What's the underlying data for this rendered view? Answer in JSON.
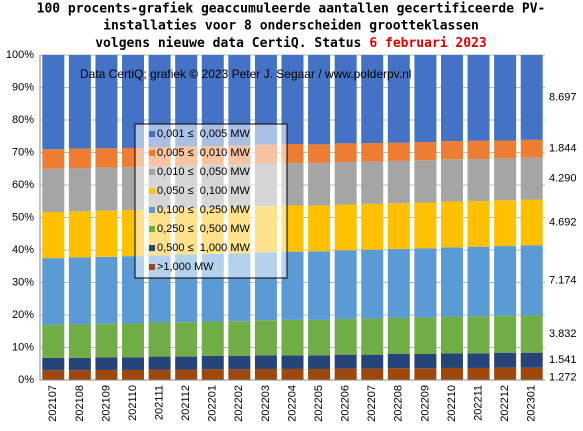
{
  "chart_data": {
    "type": "stacked_percent_bar",
    "title_lines": [
      "100 procents-grafiek geaccumuleerde aantallen gecertificeerde PV-",
      "installaties voor 8 onderscheiden grootteklassen",
      "volgens nieuwe data CertiQ. Status"
    ],
    "title_date": "6 februari  2023",
    "annotation": "Data CertiQ; grafiek © 2023 Peter J. Segaar / www.polderpv.nl",
    "categories": [
      "202107",
      "202108",
      "202109",
      "202110",
      "202111",
      "202112",
      "202201",
      "202202",
      "202203",
      "202204",
      "202205",
      "202206",
      "202207",
      "202208",
      "202209",
      "202210",
      "202211",
      "202212",
      "202301"
    ],
    "ylim": [
      0,
      100
    ],
    "yticks": [
      {
        "value": 0,
        "label": "0%"
      },
      {
        "value": 10,
        "label": "10%"
      },
      {
        "value": 20,
        "label": "20%"
      },
      {
        "value": 30,
        "label": "30%"
      },
      {
        "value": 40,
        "label": "40%"
      },
      {
        "value": 50,
        "label": "50%"
      },
      {
        "value": 60,
        "label": "60%"
      },
      {
        "value": 70,
        "label": "70%"
      },
      {
        "value": 80,
        "label": "80%"
      },
      {
        "value": 90,
        "label": "90%"
      },
      {
        "value": 100,
        "label": "100%"
      }
    ],
    "grid": true,
    "series": [
      {
        "name": "0,001 ≤  0,005 MW",
        "color": "#4472c4",
        "end_label": "8.697",
        "values": [
          29.0,
          28.8,
          28.7,
          28.6,
          28.3,
          28.1,
          28.0,
          27.9,
          27.6,
          27.4,
          27.5,
          27.2,
          27.1,
          27.0,
          26.8,
          26.5,
          26.4,
          26.3,
          26.1
        ]
      },
      {
        "name": "0,005 ≤  0,010 MW",
        "color": "#ed7d31",
        "end_label": "1.844",
        "values": [
          6.0,
          6.0,
          5.9,
          5.9,
          5.9,
          5.9,
          5.8,
          5.8,
          5.8,
          5.8,
          5.7,
          5.7,
          5.7,
          5.6,
          5.6,
          5.6,
          5.6,
          5.5,
          5.5
        ]
      },
      {
        "name": "0,010 ≤  0,050 MW",
        "color": "#a5a5a5",
        "end_label": "4.290",
        "values": [
          13.3,
          13.3,
          13.3,
          13.2,
          13.2,
          13.2,
          13.2,
          13.1,
          13.1,
          13.1,
          13.1,
          13.1,
          13.0,
          13.0,
          13.0,
          13.0,
          12.9,
          12.9,
          12.9
        ]
      },
      {
        "name": "0,050 ≤  0,100 MW",
        "color": "#ffc000",
        "end_label": "4.692",
        "values": [
          14.2,
          14.2,
          14.2,
          14.2,
          14.2,
          14.2,
          14.2,
          14.2,
          14.2,
          14.2,
          14.1,
          14.1,
          14.1,
          14.1,
          14.1,
          14.1,
          14.1,
          14.1,
          14.1
        ]
      },
      {
        "name": "0,100 ≤  0,250 MW",
        "color": "#5b9bd5",
        "end_label": "7.174",
        "values": [
          20.5,
          20.6,
          20.6,
          20.7,
          20.7,
          20.8,
          20.8,
          20.9,
          20.9,
          21.0,
          21.1,
          21.1,
          21.2,
          21.2,
          21.3,
          21.3,
          21.4,
          21.4,
          21.5
        ]
      },
      {
        "name": "0,250 ≤  0,500 MW",
        "color": "#70ad47",
        "end_label": "3.832",
        "values": [
          10.2,
          10.3,
          10.3,
          10.4,
          10.5,
          10.6,
          10.6,
          10.7,
          10.8,
          10.9,
          10.9,
          11.0,
          11.1,
          11.1,
          11.2,
          11.3,
          11.4,
          11.4,
          11.5
        ]
      },
      {
        "name": "0,500 ≤  1,000 MW",
        "color": "#264478",
        "end_label": "1.541",
        "values": [
          3.8,
          3.8,
          3.9,
          3.9,
          4.0,
          4.0,
          4.1,
          4.1,
          4.2,
          4.2,
          4.2,
          4.3,
          4.3,
          4.4,
          4.4,
          4.5,
          4.5,
          4.6,
          4.6
        ]
      },
      {
        "name": ">1,000 MW",
        "color": "#9e480e",
        "end_label": "1.272",
        "values": [
          3.0,
          3.0,
          3.1,
          3.1,
          3.2,
          3.2,
          3.3,
          3.3,
          3.4,
          3.4,
          3.4,
          3.5,
          3.5,
          3.6,
          3.6,
          3.7,
          3.7,
          3.8,
          3.8
        ]
      }
    ]
  }
}
